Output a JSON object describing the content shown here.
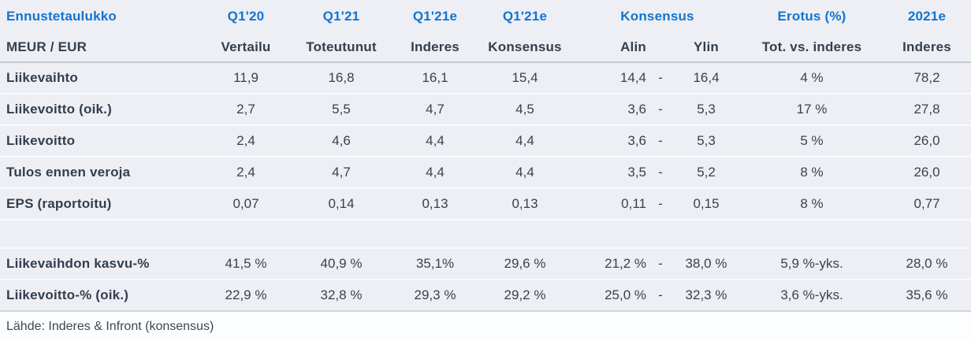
{
  "table": {
    "header_row1": {
      "title": "Ennustetaulukko",
      "q120": "Q1'20",
      "q121": "Q1'21",
      "q121e_inderes": "Q1'21e",
      "q121e_konsensus": "Q1'21e",
      "konsensus_group": "Konsensus",
      "erotus": "Erotus (%)",
      "y2021e": "2021e"
    },
    "header_row2": {
      "unit": "MEUR / EUR",
      "vertailu": "Vertailu",
      "toteutunut": "Toteutunut",
      "inderes": "Inderes",
      "konsensus": "Konsensus",
      "alin": "Alin",
      "ylin": "Ylin",
      "tot_vs_inderes": "Tot. vs. inderes",
      "inderes_2021": "Inderes"
    },
    "rows": [
      {
        "label": "Liikevaihto",
        "vertailu": "11,9",
        "toteutunut": "16,8",
        "inderes": "16,1",
        "konsensus": "15,4",
        "alin": "14,4",
        "dash": "-",
        "ylin": "16,4",
        "erotus": "4 %",
        "e2021": "78,2"
      },
      {
        "label": "Liikevoitto (oik.)",
        "vertailu": "2,7",
        "toteutunut": "5,5",
        "inderes": "4,7",
        "konsensus": "4,5",
        "alin": "3,6",
        "dash": "-",
        "ylin": "5,3",
        "erotus": "17 %",
        "e2021": "27,8"
      },
      {
        "label": "Liikevoitto",
        "vertailu": "2,4",
        "toteutunut": "4,6",
        "inderes": "4,4",
        "konsensus": "4,4",
        "alin": "3,6",
        "dash": "-",
        "ylin": "5,3",
        "erotus": "5 %",
        "e2021": "26,0"
      },
      {
        "label": "Tulos ennen veroja",
        "vertailu": "2,4",
        "toteutunut": "4,7",
        "inderes": "4,4",
        "konsensus": "4,4",
        "alin": "3,5",
        "dash": "-",
        "ylin": "5,2",
        "erotus": "8 %",
        "e2021": "26,0"
      },
      {
        "label": "EPS (raportoitu)",
        "vertailu": "0,07",
        "toteutunut": "0,14",
        "inderes": "0,13",
        "konsensus": "0,13",
        "alin": "0,11",
        "dash": "-",
        "ylin": "0,15",
        "erotus": "8 %",
        "e2021": "0,77"
      },
      {
        "label": "",
        "vertailu": "",
        "toteutunut": "",
        "inderes": "",
        "konsensus": "",
        "alin": "",
        "dash": "",
        "ylin": "",
        "erotus": "",
        "e2021": ""
      },
      {
        "label": "Liikevaihdon kasvu-%",
        "vertailu": "41,5 %",
        "toteutunut": "40,9 %",
        "inderes": "35,1%",
        "konsensus": "29,6 %",
        "alin": "21,2 %",
        "dash": "-",
        "ylin": "38,0 %",
        "erotus": "5,9 %-yks.",
        "e2021": "28,0 %"
      },
      {
        "label": "Liikevoitto-% (oik.)",
        "vertailu": "22,9 %",
        "toteutunut": "32,8 %",
        "inderes": "29,3 %",
        "konsensus": "29,2 %",
        "alin": "25,0 %",
        "dash": "-",
        "ylin": "32,3 %",
        "erotus": "3,6 %-yks.",
        "e2021": "35,6 %"
      }
    ]
  },
  "footer": {
    "source": "Lähde: Inderes & Infront (konsensus)"
  },
  "colors": {
    "accent_blue": "#1274d2",
    "text_dark": "#333e4e",
    "row_background": "#edeff4",
    "row_separator": "#f8f9fc",
    "header_border": "#c3c7cf",
    "footer_background": "#fcfdfe"
  }
}
